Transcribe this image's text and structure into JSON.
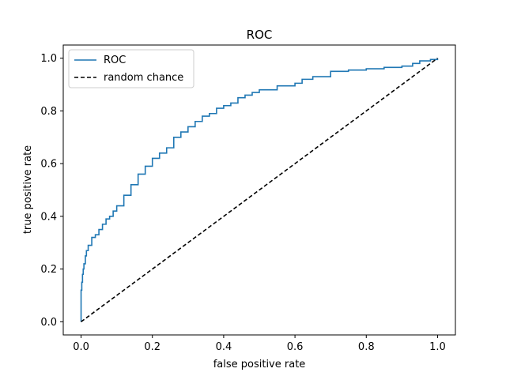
{
  "chart_data": {
    "type": "line",
    "title": "ROC",
    "xlabel": "false positive rate",
    "ylabel": "true positive rate",
    "xlim": [
      -0.05,
      1.05
    ],
    "ylim": [
      -0.05,
      1.05
    ],
    "xticks": [
      "0.0",
      "0.2",
      "0.4",
      "0.6",
      "0.8",
      "1.0"
    ],
    "yticks": [
      "0.0",
      "0.2",
      "0.4",
      "0.6",
      "0.8",
      "1.0"
    ],
    "grid": false,
    "legend_position": "upper-left",
    "series": [
      {
        "name": "ROC",
        "color": "#1f77b4",
        "style": "solid",
        "x": [
          0.0,
          0.0,
          0.002,
          0.004,
          0.006,
          0.008,
          0.012,
          0.015,
          0.02,
          0.03,
          0.04,
          0.05,
          0.06,
          0.07,
          0.08,
          0.09,
          0.1,
          0.12,
          0.14,
          0.16,
          0.18,
          0.2,
          0.22,
          0.24,
          0.26,
          0.28,
          0.3,
          0.32,
          0.34,
          0.36,
          0.38,
          0.4,
          0.42,
          0.44,
          0.46,
          0.48,
          0.5,
          0.55,
          0.6,
          0.62,
          0.65,
          0.7,
          0.75,
          0.8,
          0.85,
          0.9,
          0.93,
          0.95,
          0.98,
          1.0
        ],
        "y": [
          0.0,
          0.12,
          0.15,
          0.18,
          0.2,
          0.22,
          0.25,
          0.27,
          0.29,
          0.32,
          0.33,
          0.35,
          0.37,
          0.39,
          0.4,
          0.42,
          0.44,
          0.48,
          0.52,
          0.56,
          0.59,
          0.62,
          0.64,
          0.66,
          0.7,
          0.72,
          0.74,
          0.76,
          0.78,
          0.79,
          0.81,
          0.82,
          0.83,
          0.85,
          0.86,
          0.87,
          0.88,
          0.895,
          0.905,
          0.92,
          0.93,
          0.95,
          0.955,
          0.96,
          0.965,
          0.97,
          0.98,
          0.99,
          0.995,
          1.0
        ]
      },
      {
        "name": "random chance",
        "color": "#000000",
        "style": "dashed",
        "x": [
          0.0,
          1.0
        ],
        "y": [
          0.0,
          1.0
        ]
      }
    ]
  }
}
